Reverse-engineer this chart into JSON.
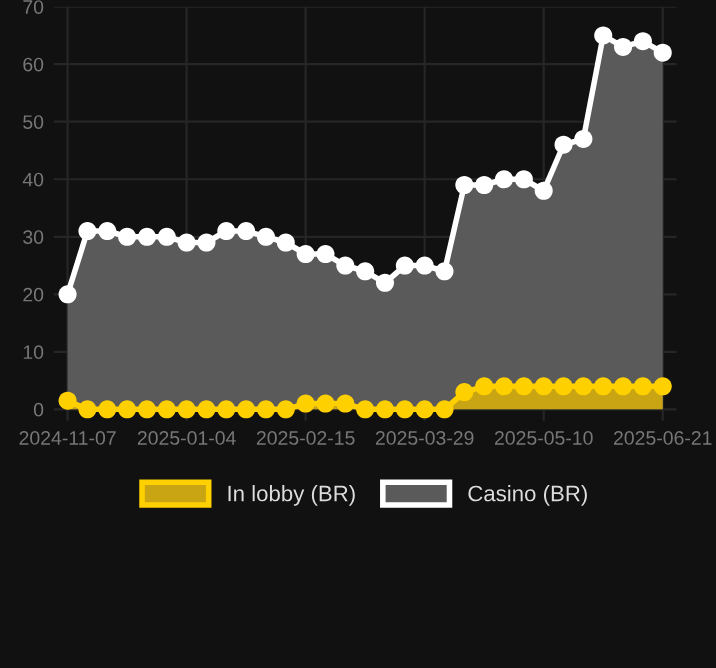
{
  "chart_data": {
    "type": "area",
    "categories": [
      "2024-11-07",
      null,
      null,
      null,
      null,
      null,
      "2025-01-04",
      null,
      null,
      null,
      null,
      null,
      "2025-02-15",
      null,
      null,
      null,
      null,
      null,
      "2025-03-29",
      null,
      null,
      null,
      null,
      null,
      "2025-05-10",
      null,
      null,
      null,
      null,
      null,
      "2025-06-21"
    ],
    "series": [
      {
        "name": "In lobby (BR)",
        "color": "#ffd000",
        "values": [
          1.5,
          0,
          0,
          0,
          0,
          0,
          0,
          0,
          0,
          0,
          0,
          0,
          1,
          1,
          1,
          0,
          0,
          0,
          0,
          0,
          3,
          4,
          4,
          4,
          4,
          4,
          4,
          4,
          4,
          4,
          4
        ]
      },
      {
        "name": "Casino (BR)",
        "color": "#ffffff",
        "values": [
          20,
          31,
          31,
          30,
          30,
          30,
          29,
          29,
          31,
          31,
          30,
          29,
          27,
          27,
          25,
          24,
          22,
          25,
          25,
          24,
          39,
          39,
          40,
          40,
          38,
          46,
          47,
          65,
          63,
          64,
          62
        ]
      }
    ],
    "ylim": [
      -2,
      70
    ],
    "yticks": [
      0,
      10,
      20,
      30,
      40,
      50,
      60,
      70
    ],
    "grid": true,
    "legend": "bottom",
    "marker": "circle",
    "line_style": "solid"
  }
}
